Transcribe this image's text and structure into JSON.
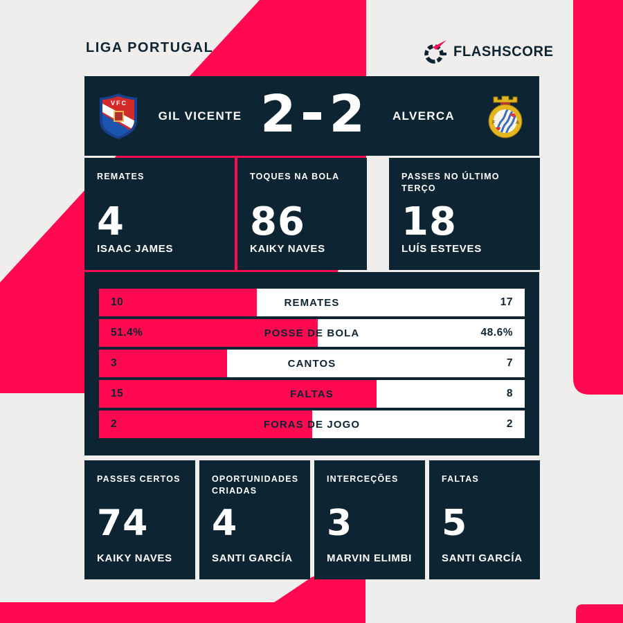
{
  "header": {
    "league": "LIGA PORTUGAL",
    "brand": "FLASHSCORE"
  },
  "match": {
    "home_team": "GIL VICENTE",
    "away_team": "ALVERCA",
    "home_score": "2",
    "away_score": "2",
    "home_crest_initials": "VFC"
  },
  "top_stats": [
    {
      "label": "REMATES",
      "value": "4",
      "player": "ISAAC JAMES"
    },
    {
      "label": "TOQUES NA BOLA",
      "value": "86",
      "player": "KAIKY NAVES"
    },
    {
      "label": "PASSES NO ÚLTIMO TERÇO",
      "value": "18",
      "player": "LUÍS ESTEVES"
    }
  ],
  "bar_stats": [
    {
      "home": "10",
      "label": "REMATES",
      "away": "17",
      "home_share": 0.37
    },
    {
      "home": "51.4%",
      "label": "POSSE DE BOLA",
      "away": "48.6%",
      "home_share": 0.514
    },
    {
      "home": "3",
      "label": "CANTOS",
      "away": "7",
      "home_share": 0.3
    },
    {
      "home": "15",
      "label": "FALTAS",
      "away": "8",
      "home_share": 0.652
    },
    {
      "home": "2",
      "label": "FORAS DE JOGO",
      "away": "2",
      "home_share": 0.5
    }
  ],
  "bottom_stats": [
    {
      "label": "PASSES CERTOS",
      "value": "74",
      "player": "KAIKY NAVES"
    },
    {
      "label": "OPORTUNIDADES CRIADAS",
      "value": "4",
      "player": "SANTI GARCÍA"
    },
    {
      "label": "INTERCEÇÕES",
      "value": "3",
      "player": "MARVIN ELIMBI"
    },
    {
      "label": "FALTAS",
      "value": "5",
      "player": "SANTI GARCÍA"
    }
  ],
  "chart_data": {
    "type": "bar",
    "title": "GIL VICENTE 2-2 ALVERCA",
    "subtitle": "LIGA PORTUGAL",
    "categories": [
      "REMATES",
      "POSSE DE BOLA",
      "CANTOS",
      "FALTAS",
      "FORAS DE JOGO"
    ],
    "series": [
      {
        "name": "GIL VICENTE",
        "values": [
          10,
          51.4,
          3,
          15,
          2
        ]
      },
      {
        "name": "ALVERCA",
        "values": [
          17,
          48.6,
          7,
          8,
          2
        ]
      }
    ],
    "legend_position": "none",
    "grid": false,
    "layout": "horizontal-opposed-bars"
  },
  "colors": {
    "accent_pink": "#ff0a50",
    "panel_navy": "#0d2432",
    "background_gray": "#efeeec",
    "bar_white": "#ffffff"
  },
  "layout_geometry": {
    "top_box_lefts": [
      122,
      343,
      562
    ],
    "top_box_widths": [
      217,
      187,
      218
    ],
    "bottom_box_lefts": [
      122,
      288,
      454,
      620
    ],
    "bottom_box_width": 160
  }
}
